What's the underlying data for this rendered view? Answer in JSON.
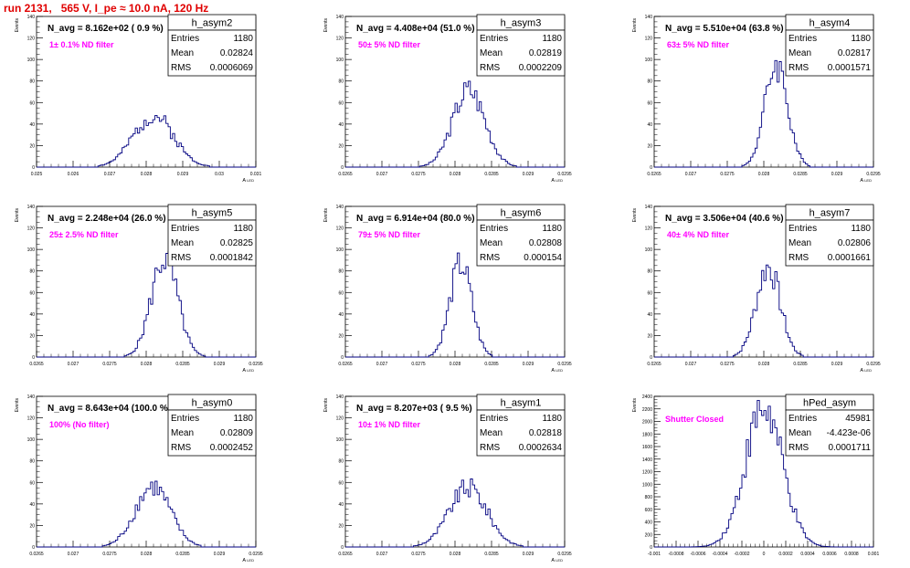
{
  "run_title": "run 2131,   565 V, I_pe ≈ 10.0 nA, 120 Hz",
  "y_axis_label": "Events",
  "stats_labels": {
    "entries": "Entries",
    "mean": "Mean",
    "rms": "RMS"
  },
  "colors": {
    "histogram": "#000080",
    "filter_text": "#ff00ff",
    "title": "#e00000",
    "frame": "#000000"
  },
  "chart_data": [
    {
      "type": "bar",
      "name": "h_asym2",
      "navg": "N_avg = 8.162e+02 ( 0.9 %)",
      "filter": "1± 0.1% ND filter",
      "xlabel": "A_LED",
      "entries": "1180",
      "mean": "0.02824",
      "rms": "0.0006069",
      "xlim": [
        0.025,
        0.031
      ],
      "ylim": [
        0,
        140
      ],
      "xticks": [
        "0.025",
        "0.026",
        "0.027",
        "0.028",
        "0.029",
        "0.03",
        "0.031"
      ],
      "yticks": [
        "0",
        "20",
        "40",
        "60",
        "80",
        "100",
        "120",
        "140"
      ],
      "mu": 0.0282,
      "sigma": 0.00055,
      "peak": 48,
      "seed": 2
    },
    {
      "type": "bar",
      "name": "h_asym3",
      "navg": "N_avg = 4.408e+04 (51.0 %)",
      "filter": "50± 5% ND filter",
      "xlabel": "A_LED",
      "entries": "1180",
      "mean": "0.02819",
      "rms": "0.0002209",
      "xlim": [
        0.0265,
        0.0295
      ],
      "ylim": [
        0,
        140
      ],
      "xticks": [
        "0.0265",
        "0.027",
        "0.0275",
        "0.028",
        "0.0285",
        "0.029",
        "0.0295"
      ],
      "yticks": [
        "0",
        "20",
        "40",
        "60",
        "80",
        "100",
        "120",
        "140"
      ],
      "mu": 0.02819,
      "sigma": 0.00022,
      "peak": 72,
      "seed": 3
    },
    {
      "type": "bar",
      "name": "h_asym4",
      "navg": "N_avg = 5.510e+04 (63.8 %)",
      "filter": "63± 5% ND filter",
      "xlabel": "A_LED",
      "entries": "1180",
      "mean": "0.02817",
      "rms": "0.0001571",
      "xlim": [
        0.0265,
        0.0295
      ],
      "ylim": [
        0,
        140
      ],
      "xticks": [
        "0.0265",
        "0.027",
        "0.0275",
        "0.028",
        "0.0285",
        "0.029",
        "0.0295"
      ],
      "yticks": [
        "0",
        "20",
        "40",
        "60",
        "80",
        "100",
        "120",
        "140"
      ],
      "mu": 0.02817,
      "sigma": 0.000155,
      "peak": 96,
      "seed": 4
    },
    {
      "type": "bar",
      "name": "h_asym5",
      "navg": "N_avg = 2.248e+04 (26.0 %)",
      "filter": "25± 2.5% ND filter",
      "xlabel": "A_LED",
      "entries": "1180",
      "mean": "0.02825",
      "rms": "0.0001842",
      "xlim": [
        0.0265,
        0.0295
      ],
      "ylim": [
        0,
        140
      ],
      "xticks": [
        "0.0265",
        "0.027",
        "0.0275",
        "0.028",
        "0.0285",
        "0.029",
        "0.0295"
      ],
      "yticks": [
        "0",
        "20",
        "40",
        "60",
        "80",
        "100",
        "120",
        "140"
      ],
      "mu": 0.02825,
      "sigma": 0.00018,
      "peak": 92,
      "seed": 5
    },
    {
      "type": "bar",
      "name": "h_asym6",
      "navg": "N_avg = 6.914e+04 (80.0 %)",
      "filter": "79± 5% ND filter",
      "xlabel": "A_LED",
      "entries": "1180",
      "mean": "0.02808",
      "rms": "0.000154",
      "xlim": [
        0.0265,
        0.0295
      ],
      "ylim": [
        0,
        140
      ],
      "xticks": [
        "0.0265",
        "0.027",
        "0.0275",
        "0.028",
        "0.0285",
        "0.029",
        "0.0295"
      ],
      "yticks": [
        "0",
        "20",
        "40",
        "60",
        "80",
        "100",
        "120",
        "140"
      ],
      "mu": 0.02808,
      "sigma": 0.00015,
      "peak": 86,
      "seed": 6
    },
    {
      "type": "bar",
      "name": "h_asym7",
      "navg": "N_avg = 3.506e+04 (40.6 %)",
      "filter": "40± 4% ND filter",
      "xlabel": "A_LED",
      "entries": "1180",
      "mean": "0.02806",
      "rms": "0.0001661",
      "xlim": [
        0.0265,
        0.0295
      ],
      "ylim": [
        0,
        140
      ],
      "xticks": [
        "0.0265",
        "0.027",
        "0.0275",
        "0.028",
        "0.0285",
        "0.029",
        "0.0295"
      ],
      "yticks": [
        "0",
        "20",
        "40",
        "60",
        "80",
        "100",
        "120",
        "140"
      ],
      "mu": 0.02806,
      "sigma": 0.000165,
      "peak": 84,
      "seed": 7
    },
    {
      "type": "bar",
      "name": "h_asym0",
      "navg": "N_avg = 8.643e+04 (100.0 %)",
      "filter": "100% (No filter)",
      "xlabel": "A_LED",
      "entries": "1180",
      "mean": "0.02809",
      "rms": "0.0002452",
      "xlim": [
        0.0265,
        0.0295
      ],
      "ylim": [
        0,
        140
      ],
      "xticks": [
        "0.0265",
        "0.027",
        "0.0275",
        "0.028",
        "0.0285",
        "0.029",
        "0.0295"
      ],
      "yticks": [
        "0",
        "20",
        "40",
        "60",
        "80",
        "100",
        "120",
        "140"
      ],
      "mu": 0.02809,
      "sigma": 0.00024,
      "peak": 56,
      "seed": 8
    },
    {
      "type": "bar",
      "name": "h_asym1",
      "navg": "N_avg = 8.207e+03 ( 9.5 %)",
      "filter": "10± 1% ND filter",
      "xlabel": "A_LED",
      "entries": "1180",
      "mean": "0.02818",
      "rms": "0.0002634",
      "xlim": [
        0.0265,
        0.0295
      ],
      "ylim": [
        0,
        140
      ],
      "xticks": [
        "0.0265",
        "0.027",
        "0.0275",
        "0.028",
        "0.0285",
        "0.029",
        "0.0295"
      ],
      "yticks": [
        "0",
        "20",
        "40",
        "60",
        "80",
        "100",
        "120",
        "140"
      ],
      "mu": 0.02818,
      "sigma": 0.00026,
      "peak": 55,
      "seed": 9
    },
    {
      "type": "bar",
      "name": "hPed_asym",
      "navg": "",
      "filter": "Shutter Closed",
      "xlabel": "",
      "entries": "45981",
      "mean": "-4.423e-06",
      "rms": "0.0001711",
      "xlim": [
        -0.001,
        0.001
      ],
      "ylim": [
        0,
        2400
      ],
      "xticks": [
        "-0.001",
        "-0.0008",
        "-0.0006",
        "-0.0004",
        "-0.0002",
        "0",
        "0.0002",
        "0.0004",
        "0.0006",
        "0.0008",
        "0.001"
      ],
      "yticks": [
        "0",
        "200",
        "400",
        "600",
        "800",
        "1000",
        "1200",
        "1400",
        "1600",
        "1800",
        "2000",
        "2200",
        "2400"
      ],
      "mu": 0.0,
      "sigma": 0.00017,
      "peak": 2200,
      "seed": 10
    }
  ]
}
